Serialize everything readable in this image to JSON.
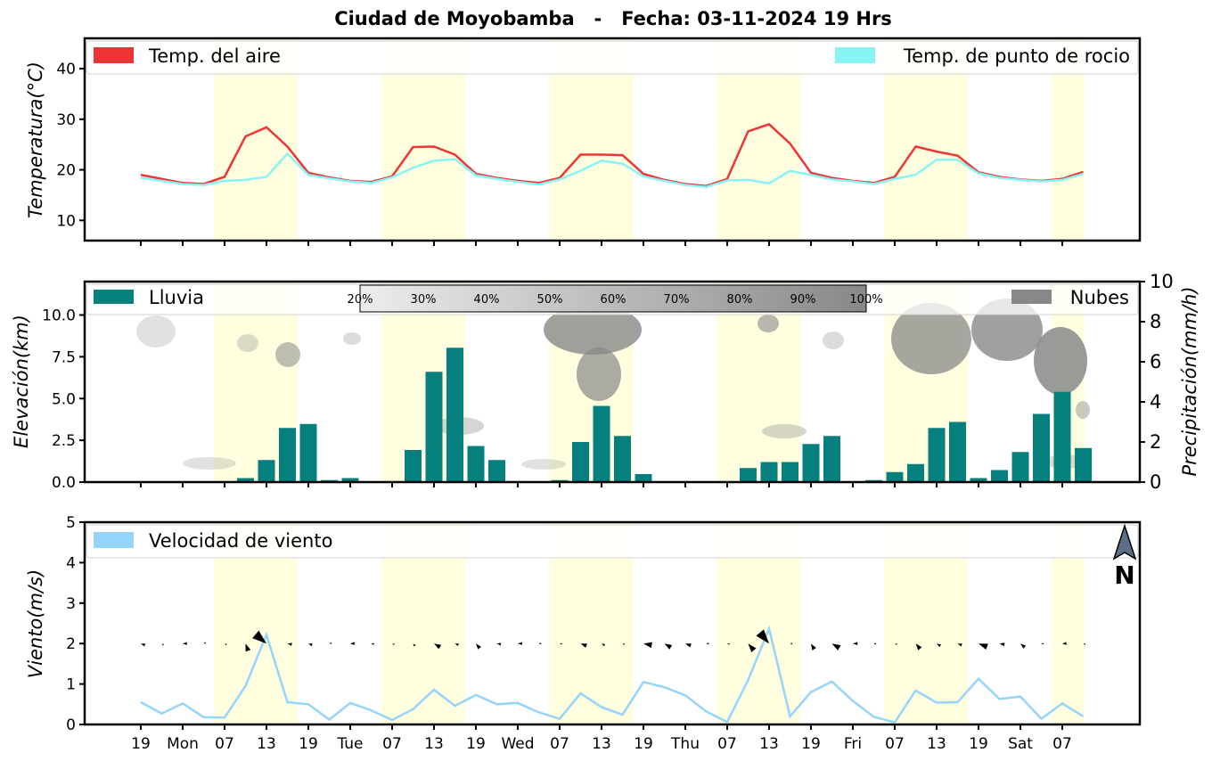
{
  "title": "Ciudad de Moyobamba   -   Fecha: 03-11-2024 19 Hrs",
  "colors": {
    "air_temp": "#ee3535",
    "dew_point": "#88f4f4",
    "rain": "#067f7f",
    "clouds": "#888888",
    "wind": "#95d4fb",
    "daylight_band": "#ffffe0"
  },
  "x_ticks": [
    "19",
    "Mon",
    "07",
    "13",
    "19",
    "Tue",
    "07",
    "13",
    "19",
    "Wed",
    "07",
    "13",
    "19",
    "Thu",
    "07",
    "13",
    "19",
    "Fri",
    "07",
    "13",
    "19",
    "Sat",
    "07"
  ],
  "cloud_scale": {
    "labels": [
      "20%",
      "30%",
      "40%",
      "50%",
      "60%",
      "70%",
      "80%",
      "90%",
      "100%"
    ]
  },
  "north_label": "N",
  "chart_data": [
    {
      "type": "line",
      "ylabel": "Temperatura(°C)",
      "ylim": [
        6,
        46
      ],
      "yticks": [
        10,
        20,
        30,
        40
      ],
      "legend": "top (left and right)",
      "series": [
        {
          "name": "Temp. del aire",
          "values": [
            19,
            18.2,
            17.4,
            17.2,
            18.6,
            26.6,
            28.4,
            24.6,
            19.4,
            18.5,
            17.8,
            17.6,
            18.7,
            24.5,
            24.6,
            23,
            19.2,
            18.4,
            17.8,
            17.4,
            18.4,
            23,
            23,
            22.9,
            19.2,
            18,
            17.2,
            16.8,
            18.2,
            27.6,
            29,
            25.2,
            19.4,
            18.4,
            17.8,
            17.4,
            18.6,
            24.6,
            23.6,
            22.8,
            19.5,
            18.6,
            18.1,
            17.8,
            18.2,
            19.6
          ]
        },
        {
          "name": "Temp. de punto de rocio",
          "values": [
            18.4,
            17.8,
            17.2,
            17,
            17.8,
            18,
            18.6,
            23.2,
            19,
            18.3,
            17.7,
            17.4,
            18.5,
            20.4,
            21.8,
            22.1,
            18.9,
            18.2,
            17.6,
            17.1,
            18.1,
            19.8,
            21.8,
            21.2,
            18.7,
            17.8,
            17,
            16.6,
            17.9,
            18,
            17.3,
            19.8,
            19,
            18.1,
            17.7,
            17.2,
            18.2,
            19,
            22,
            22,
            19.3,
            18.4,
            18,
            17.7,
            18,
            19.2
          ]
        }
      ]
    },
    {
      "type": "bar",
      "ylabel": "Elevación(km)",
      "ylabel_right": "Precipitación(mm/h)",
      "ylim": [
        0,
        12
      ],
      "yticks": [
        0,
        2.5,
        5,
        7.5,
        10
      ],
      "ylim_right": [
        0,
        10
      ],
      "yticks_right": [
        0,
        2,
        4,
        6,
        8,
        10
      ],
      "legend": "top-left and top-right",
      "series": [
        {
          "name": "Lluvia",
          "values": [
            0,
            0,
            0,
            0,
            0,
            0.2,
            1.1,
            2.7,
            2.9,
            0.1,
            0.2,
            0,
            0,
            1.6,
            5.5,
            6.7,
            1.8,
            1.1,
            0.05,
            0,
            0.1,
            2,
            3.8,
            2.3,
            0.4,
            0,
            0,
            0,
            0,
            0.7,
            1,
            1,
            1.9,
            2.3,
            0,
            0.1,
            0.5,
            0.9,
            2.7,
            3,
            0.2,
            0.6,
            1.5,
            3.4,
            4.5,
            1.7
          ]
        },
        {
          "name": "Nubes",
          "values": []
        }
      ]
    },
    {
      "type": "line",
      "ylabel": "Viento(m/s)",
      "ylim": [
        0,
        5
      ],
      "yticks": [
        0,
        1,
        2,
        3,
        4,
        5
      ],
      "legend": "top-left",
      "series": [
        {
          "name": "Velocidad de viento",
          "values": [
            0.55,
            0.27,
            0.52,
            0.18,
            0.17,
            0.95,
            2.22,
            0.55,
            0.5,
            0.12,
            0.53,
            0.35,
            0.11,
            0.38,
            0.86,
            0.46,
            0.73,
            0.5,
            0.53,
            0.3,
            0.14,
            0.77,
            0.43,
            0.24,
            1.05,
            0.92,
            0.72,
            0.32,
            0.06,
            1.1,
            2.37,
            0.2,
            0.8,
            1.06,
            0.58,
            0.19,
            0.05,
            0.84,
            0.54,
            0.55,
            1.13,
            0.63,
            0.69,
            0.14,
            0.52,
            0.2
          ]
        }
      ]
    }
  ]
}
